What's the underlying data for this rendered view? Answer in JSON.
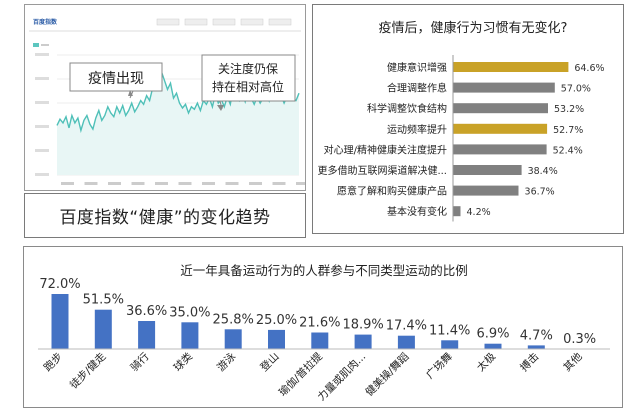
{
  "screenshot": {
    "brand": "百度指数",
    "annotations": [
      {
        "text": "疫情出现"
      },
      {
        "text": "关注度仍保\n持在相对高位"
      }
    ],
    "caption": "百度指数“健康”的变化趋势",
    "trend": [
      0.4,
      0.45,
      0.42,
      0.47,
      0.38,
      0.48,
      0.42,
      0.46,
      0.36,
      0.44,
      0.48,
      0.41,
      0.37,
      0.46,
      0.52,
      0.44,
      0.48,
      0.55,
      0.5,
      0.47,
      0.55,
      0.5,
      0.56,
      0.48,
      0.52,
      0.58,
      0.51,
      0.55,
      0.6,
      0.57,
      0.64,
      0.6,
      0.7,
      0.78,
      0.72,
      0.83,
      0.76,
      0.69,
      0.74,
      0.62,
      0.66,
      0.58,
      0.54,
      0.57,
      0.5,
      0.55,
      0.53,
      0.58,
      0.52,
      0.6,
      0.57,
      0.62,
      0.55,
      0.65,
      0.58,
      0.61,
      0.55,
      0.63,
      0.57,
      0.7,
      0.64,
      0.6,
      0.66,
      0.59,
      0.68,
      0.62,
      0.57,
      0.63,
      0.58,
      0.62,
      0.67,
      0.6,
      0.72,
      0.66,
      0.61,
      0.64,
      0.58,
      0.63,
      0.69,
      0.61,
      0.6,
      0.66
    ]
  },
  "chart_data": [
    {
      "type": "bar",
      "orientation": "horizontal",
      "title": "疫情后，健康行为习惯有无变化?",
      "categories": [
        "健康意识增强",
        "合理调整作息",
        "科学调整饮食结构",
        "运动频率提升",
        "对心理/精神健康关注度提升",
        "更多借助互联网渠道解决健...",
        "愿意了解和购买健康产品",
        "基本没有变化"
      ],
      "values": [
        64.6,
        57.0,
        53.2,
        52.7,
        52.4,
        38.4,
        36.7,
        4.2
      ],
      "value_labels": [
        "64.6%",
        "57.0%",
        "53.2%",
        "52.7%",
        "52.4%",
        "38.4%",
        "36.7%",
        "4.2%"
      ],
      "highlighted": [
        true,
        false,
        false,
        true,
        false,
        false,
        false,
        false
      ],
      "colors": {
        "highlight": "#c9a227",
        "default": "#808080"
      }
    },
    {
      "type": "bar",
      "title": "近一年具备运动行为的人群参与不同类型运动的比例",
      "categories": [
        "跑步",
        "徒步/健走",
        "骑行",
        "球类",
        "游泳",
        "登山",
        "瑜伽/普拉提",
        "力量或肌肉...",
        "健美操/舞蹈",
        "广场舞",
        "太极",
        "搏击",
        "其他"
      ],
      "values": [
        72.0,
        51.5,
        36.6,
        35.0,
        25.8,
        25.0,
        21.6,
        18.9,
        17.4,
        11.4,
        6.9,
        4.7,
        0.3
      ],
      "value_labels": [
        "72.0%",
        "51.5%",
        "36.6%",
        "35.0%",
        "25.8%",
        "25.0%",
        "21.6%",
        "18.9%",
        "17.4%",
        "11.4%",
        "6.9%",
        "4.7%",
        "0.3%"
      ],
      "colors": {
        "bar": "#4472c4"
      }
    }
  ]
}
